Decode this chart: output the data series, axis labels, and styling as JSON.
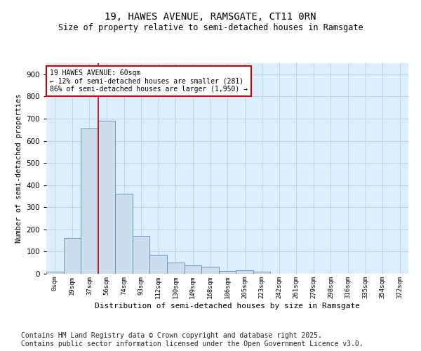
{
  "title_line1": "19, HAWES AVENUE, RAMSGATE, CT11 0RN",
  "title_line2": "Size of property relative to semi-detached houses in Ramsgate",
  "xlabel": "Distribution of semi-detached houses by size in Ramsgate",
  "ylabel": "Number of semi-detached properties",
  "bar_color": "#ccdded",
  "bar_edge_color": "#5a8db0",
  "grid_color": "#b8cfe0",
  "background_color": "#ddeeff",
  "annotation_box_text": "19 HAWES AVENUE: 60sqm\n← 12% of semi-detached houses are smaller (281)\n86% of semi-detached houses are larger (1,950) →",
  "annotation_box_color": "#ffffff",
  "annotation_box_edge": "#cc0000",
  "vline_x": 2.5,
  "vline_color": "#cc0000",
  "categories": [
    "0sqm",
    "19sqm",
    "37sqm",
    "56sqm",
    "74sqm",
    "93sqm",
    "112sqm",
    "130sqm",
    "149sqm",
    "168sqm",
    "186sqm",
    "205sqm",
    "223sqm",
    "242sqm",
    "261sqm",
    "279sqm",
    "298sqm",
    "316sqm",
    "335sqm",
    "354sqm",
    "372sqm"
  ],
  "bar_heights": [
    8,
    160,
    655,
    690,
    362,
    170,
    87,
    50,
    38,
    32,
    12,
    15,
    9,
    0,
    0,
    0,
    0,
    0,
    0,
    0,
    0
  ],
  "ylim": [
    0,
    950
  ],
  "yticks": [
    0,
    100,
    200,
    300,
    400,
    500,
    600,
    700,
    800,
    900
  ],
  "footnote": "Contains HM Land Registry data © Crown copyright and database right 2025.\nContains public sector information licensed under the Open Government Licence v3.0.",
  "footnote_fontsize": 7.0,
  "title_fontsize": 10,
  "subtitle_fontsize": 8.5
}
